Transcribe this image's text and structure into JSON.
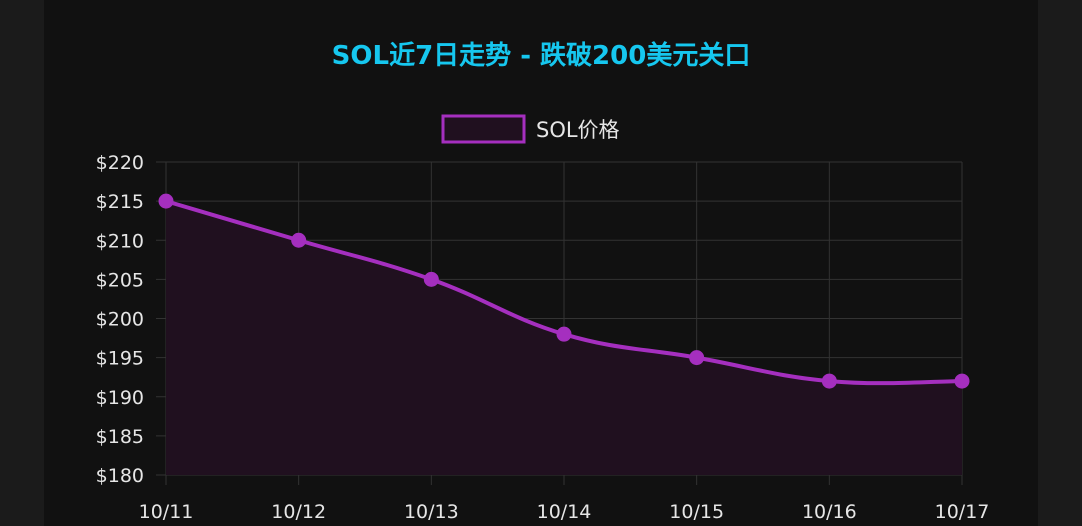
{
  "chart_data": {
    "type": "line",
    "title": "SOL近7日走势 - 跌破200美元关口",
    "categories": [
      "10/11",
      "10/12",
      "10/13",
      "10/14",
      "10/15",
      "10/16",
      "10/17"
    ],
    "series": [
      {
        "name": "SOL价格",
        "values": [
          215,
          210,
          205,
          198,
          195,
          192,
          192
        ]
      }
    ],
    "y_ticks": [
      "$180",
      "$185",
      "$190",
      "$195",
      "$200",
      "$205",
      "$210",
      "$215",
      "$220"
    ],
    "ylim": [
      180,
      220
    ],
    "grid": true,
    "legend_position": "top-center",
    "filled": true
  },
  "colors": {
    "background": "#1b1b1b",
    "panel": "#111111",
    "title": "#16c7ef",
    "line": "#a52fbf",
    "fill": "#20101f",
    "grid": "#333333",
    "text": "#e6e6e6"
  }
}
